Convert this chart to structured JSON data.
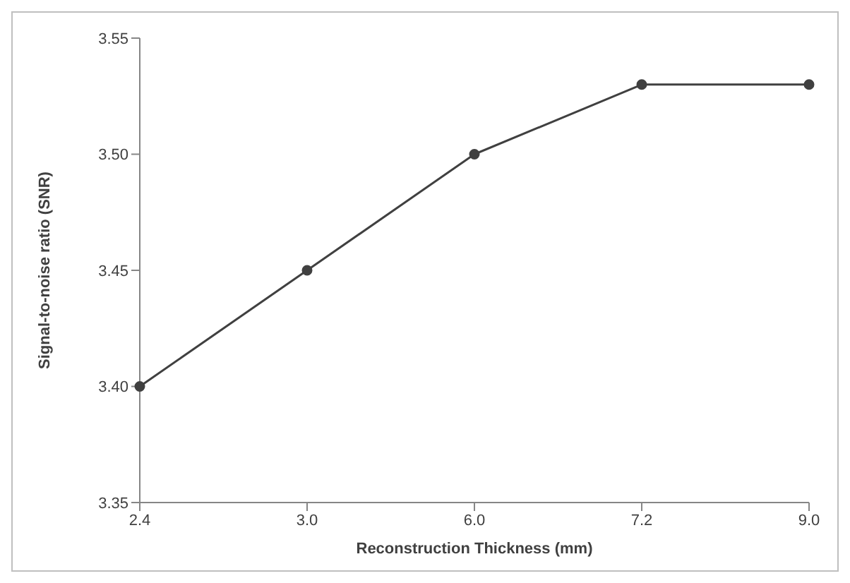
{
  "chart_data": {
    "type": "line",
    "xlabel": "Reconstruction Thickness (mm)",
    "ylabel": "Signal-to-noise ratio (SNR)",
    "categories": [
      "2.4",
      "3.0",
      "6.0",
      "7.2",
      "9.0"
    ],
    "series": [
      {
        "color": "#404040",
        "values": [
          3.4,
          3.45,
          3.5,
          3.53,
          3.53
        ]
      }
    ],
    "ylim": [
      3.35,
      3.55
    ],
    "yticks": [
      {
        "value": 3.35,
        "label": "3.35"
      },
      {
        "value": 3.4,
        "label": "3.40"
      },
      {
        "value": 3.45,
        "label": "3.45"
      },
      {
        "value": 3.5,
        "label": "3.50"
      },
      {
        "value": 3.55,
        "label": "3.55"
      }
    ],
    "grid": false,
    "legend": false,
    "marker": "circle",
    "line_style": "solid"
  }
}
